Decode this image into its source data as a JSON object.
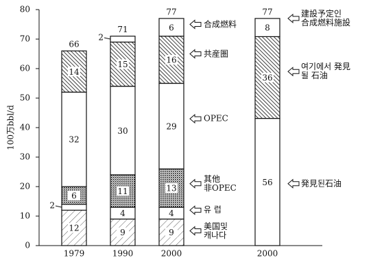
{
  "chart_data": {
    "type": "stacked-bar",
    "y_label": "100万bbl/d",
    "categories": [
      "1979",
      "1990",
      "2000"
    ],
    "ylim": [
      0,
      80
    ],
    "yticks": [
      0,
      10,
      20,
      30,
      40,
      50,
      60,
      70,
      80
    ],
    "series": [
      {
        "name": "美国및\n캐나다",
        "pattern": "hatch-light",
        "values": [
          12,
          9,
          9
        ]
      },
      {
        "name": "유 럽",
        "pattern": "none",
        "values": [
          2,
          4,
          4
        ]
      },
      {
        "name": "其他\n非OPEC",
        "pattern": "dots",
        "values": [
          6,
          11,
          13
        ]
      },
      {
        "name": "OPEC",
        "pattern": "none",
        "values": [
          32,
          30,
          29
        ]
      },
      {
        "name": "共産圏",
        "pattern": "hatch-dense",
        "values": [
          14,
          15,
          16
        ]
      },
      {
        "name": "合成燃料",
        "pattern": "none",
        "values": [
          0,
          2,
          6
        ]
      }
    ],
    "totals": [
      66,
      71,
      77
    ],
    "percent_bar": {
      "category": "2000",
      "total": 77,
      "segments": [
        {
          "name": "発見된石油",
          "pattern": "none",
          "value": 56
        },
        {
          "name": "여기에서 発見\n될 石油",
          "pattern": "hatch-dense",
          "value": 36
        },
        {
          "name": "建設予定인\n合成燃料施設",
          "pattern": "none",
          "value": 8
        }
      ]
    }
  }
}
